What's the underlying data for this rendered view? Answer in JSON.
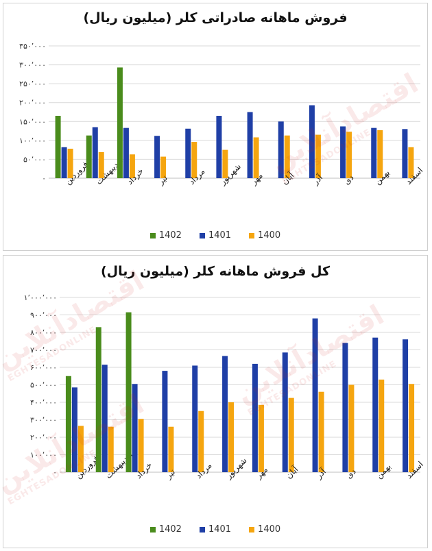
{
  "colors": {
    "1402": "#4a8c1c",
    "1401": "#1f3fa6",
    "1400": "#f5a50f"
  },
  "watermark": {
    "main": "اقتصادآنلاین",
    "sub": "EGHTESADONLINE"
  },
  "chart_data": [
    {
      "type": "bar",
      "title": "فروش ماهانه صادراتی کلر (میلیون ریال)",
      "categories": [
        "فروردین",
        "اردیبهشت",
        "خرداد",
        "تیر",
        "مرداد",
        "شهریور",
        "مهر",
        "آبان",
        "آذر",
        "دی",
        "بهمن",
        "اسفند"
      ],
      "series": [
        {
          "name": "1402",
          "values": [
            165000,
            113000,
            293000,
            null,
            null,
            null,
            null,
            null,
            null,
            null,
            null,
            null
          ]
        },
        {
          "name": "1401",
          "values": [
            82000,
            135000,
            133000,
            112000,
            131000,
            165000,
            175000,
            150000,
            193000,
            137000,
            133000,
            130000
          ]
        },
        {
          "name": "1400",
          "values": [
            78000,
            69000,
            63000,
            57000,
            96000,
            75000,
            108000,
            113000,
            115000,
            123000,
            127000,
            82000
          ]
        }
      ],
      "ylim": [
        0,
        350000
      ],
      "yticks": [
        0,
        50000,
        100000,
        150000,
        200000,
        250000,
        300000,
        350000
      ],
      "ytick_labels": [
        "۰",
        "۵۰٬۰۰۰",
        "۱۰۰٬۰۰۰",
        "۱۵۰٬۰۰۰",
        "۲۰۰٬۰۰۰",
        "۲۵۰٬۰۰۰",
        "۳۰۰٬۰۰۰",
        "۳۵۰٬۰۰۰"
      ],
      "grid": true,
      "legend": "bottom"
    },
    {
      "type": "bar",
      "title": "کل فروش ماهانه کلر (میلیون ریال)",
      "categories": [
        "فروردین",
        "اردیبهشت",
        "خرداد",
        "تیر",
        "مرداد",
        "شهریور",
        "مهر",
        "آبان",
        "آذر",
        "دی",
        "بهمن",
        "اسفند"
      ],
      "series": [
        {
          "name": "1402",
          "values": [
            550000,
            830000,
            915000,
            null,
            null,
            null,
            null,
            null,
            null,
            null,
            null,
            null
          ]
        },
        {
          "name": "1401",
          "values": [
            485000,
            615000,
            505000,
            580000,
            610000,
            665000,
            620000,
            685000,
            880000,
            740000,
            770000,
            760000
          ]
        },
        {
          "name": "1400",
          "values": [
            265000,
            260000,
            305000,
            260000,
            350000,
            400000,
            385000,
            425000,
            460000,
            500000,
            530000,
            505000
          ]
        }
      ],
      "ylim": [
        0,
        1000000
      ],
      "yticks": [
        0,
        100000,
        200000,
        300000,
        400000,
        500000,
        600000,
        700000,
        800000,
        900000,
        1000000
      ],
      "ytick_labels": [
        "۰",
        "۱۰۰٬۰۰۰",
        "۲۰۰٬۰۰۰",
        "۳۰۰٬۰۰۰",
        "۴۰۰٬۰۰۰",
        "۵۰۰٬۰۰۰",
        "۶۰۰٬۰۰۰",
        "۷۰۰٬۰۰۰",
        "۸۰۰٬۰۰۰",
        "۹۰۰٬۰۰۰",
        "۱٬۰۰۰٬۰۰۰"
      ],
      "grid": true,
      "legend": "bottom"
    }
  ]
}
